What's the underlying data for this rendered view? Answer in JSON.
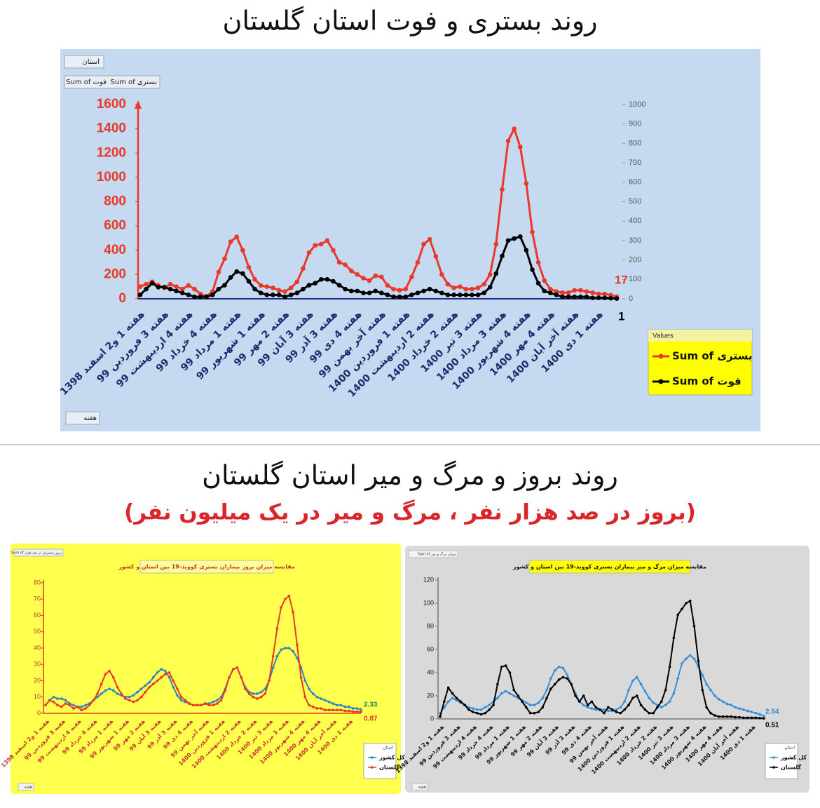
{
  "header": {
    "title1": "روند بستری و فوت استان گلستان",
    "title2": "روند بروز و مرگ و میر استان گلستان",
    "subtitle2": "(بروز در صد هزار نفر ، مرگ و میر در یک میلیون نفر)"
  },
  "chart_data": [
    {
      "type": "line",
      "filter_label": "استان",
      "axis_field_label": "هفته",
      "legend_title": "Values",
      "categories": [
        "هفته 1 و2 اسفند 1398",
        null,
        null,
        null,
        "هفته 3 فروردین 99",
        null,
        null,
        null,
        "هفته 4 اردیبهشت 99",
        null,
        null,
        null,
        "هفته 4 خرداد 99",
        null,
        null,
        null,
        "هفته 1 مرداد 99",
        null,
        null,
        null,
        "هفته 1 شهریور 99",
        null,
        null,
        null,
        "هفته 2 مهر 99",
        null,
        null,
        null,
        "هفته 3 آبان 99",
        null,
        null,
        null,
        "هفته 3 آذر 99",
        null,
        null,
        null,
        "هفته 4 دی 99",
        null,
        null,
        null,
        "هفته آخر بهمن 99",
        null,
        null,
        null,
        "هفته 1 فروردین 1400",
        null,
        null,
        null,
        "هفته 2 اردیبهشت 1400",
        null,
        null,
        null,
        "هفته 2 خرداد 1400",
        null,
        null,
        null,
        "هفته 3 تیر 1400",
        null,
        null,
        null,
        "هفته 3 مرداد 1400",
        null,
        null,
        null,
        "هفته 4 شهریور 1400",
        null,
        null,
        null,
        "هفته 4 مهر 1400",
        null,
        null,
        null,
        "هفته آخر آبان 1400",
        null,
        null,
        null,
        "هفته 1 دی 1400",
        null,
        null,
        null
      ],
      "ylim": [
        0,
        1600
      ],
      "yticks": [
        0,
        200,
        400,
        600,
        800,
        1000,
        1200,
        1400,
        1600
      ],
      "y2lim": [
        0,
        1000
      ],
      "y2ticks": [
        0,
        100,
        200,
        300,
        400,
        500,
        600,
        700,
        800,
        900,
        1000
      ],
      "series": [
        {
          "name": "Sum of بستری",
          "color": "#e8392b",
          "values": [
            100,
            120,
            140,
            110,
            90,
            120,
            100,
            80,
            110,
            80,
            40,
            20,
            60,
            220,
            330,
            470,
            510,
            400,
            260,
            160,
            110,
            100,
            90,
            70,
            60,
            90,
            140,
            250,
            380,
            440,
            450,
            480,
            400,
            300,
            280,
            230,
            200,
            170,
            150,
            190,
            180,
            110,
            80,
            70,
            80,
            180,
            300,
            450,
            490,
            350,
            200,
            120,
            90,
            100,
            80,
            80,
            90,
            120,
            200,
            450,
            900,
            1300,
            1400,
            1250,
            950,
            550,
            300,
            150,
            80,
            60,
            50,
            50,
            70,
            70,
            60,
            50,
            40,
            40,
            30,
            17
          ]
        },
        {
          "name": "Sum of فوت",
          "color": "#000000",
          "axis": "y2",
          "values": [
            20,
            50,
            80,
            60,
            60,
            50,
            40,
            30,
            20,
            10,
            10,
            10,
            20,
            50,
            70,
            110,
            140,
            130,
            90,
            50,
            30,
            20,
            20,
            20,
            10,
            20,
            30,
            50,
            70,
            80,
            100,
            100,
            90,
            70,
            50,
            40,
            40,
            30,
            30,
            40,
            30,
            20,
            10,
            10,
            10,
            20,
            30,
            40,
            50,
            40,
            30,
            20,
            20,
            20,
            20,
            20,
            20,
            30,
            60,
            130,
            220,
            300,
            310,
            320,
            250,
            150,
            80,
            40,
            30,
            20,
            10,
            10,
            10,
            10,
            10,
            5,
            5,
            5,
            3,
            1
          ]
        }
      ]
    },
    {
      "type": "line",
      "title": "مقایسه میزان بروز بیماران بستری کووید-19 بین استان و کشور",
      "value_field_label": "Sum of بروز بستریان در صد هزار",
      "filter_label": "استان",
      "axis_field_label": "هفته",
      "categories": [
        "هفته 1 و2 اسفند 1398",
        null,
        null,
        null,
        "هفته 3 فروردین 99",
        null,
        null,
        null,
        "هفته 4 اردیبهشت 99",
        null,
        null,
        null,
        "هفته 4 خرداد 99",
        null,
        null,
        null,
        "هفته 1 مرداد 99",
        null,
        null,
        null,
        "هفته 1 شهریور 99",
        null,
        null,
        null,
        "هفته 2 مهر 99",
        null,
        null,
        null,
        "هفته 3 آبان 99",
        null,
        null,
        null,
        "هفته 3 آذر 99",
        null,
        null,
        null,
        "هفته 4 دی 99",
        null,
        null,
        null,
        "هفته آخر بهمن 99",
        null,
        null,
        null,
        "هفته 1 فروردین 1400",
        null,
        null,
        null,
        "هفته 2 اردیبهشت 1400",
        null,
        null,
        null,
        "هفته 2 خرداد 1400",
        null,
        null,
        null,
        "هفته 3 تیر 1400",
        null,
        null,
        null,
        "هفته 3 مرداد 1400",
        null,
        null,
        null,
        "هفته 4 شهریور 1400",
        null,
        null,
        null,
        "هفته 4 مهر 1400",
        null,
        null,
        null,
        "هفته آخر آبان 1400",
        null,
        null,
        null,
        "هفته 1 دی 1400",
        null,
        null,
        null
      ],
      "ylim": [
        0,
        80
      ],
      "yticks": [
        0,
        10,
        20,
        30,
        40,
        50,
        60,
        70,
        80
      ],
      "series": [
        {
          "name": "کل کشور",
          "color": "#2e86c1",
          "values": [
            5,
            8,
            10,
            9,
            9,
            8,
            6,
            5,
            4,
            4,
            5,
            6,
            8,
            10,
            12,
            14,
            15,
            14,
            12,
            11,
            10,
            10,
            11,
            13,
            15,
            17,
            19,
            22,
            25,
            27,
            26,
            22,
            16,
            11,
            8,
            7,
            6,
            5,
            5,
            5,
            6,
            6,
            7,
            8,
            10,
            15,
            22,
            27,
            28,
            22,
            16,
            13,
            12,
            12,
            13,
            15,
            20,
            28,
            35,
            39,
            40,
            40,
            38,
            34,
            28,
            20,
            15,
            12,
            10,
            9,
            8,
            7,
            6,
            5,
            5,
            4,
            4,
            3,
            3,
            2.33
          ]
        },
        {
          "name": "گلستان",
          "color": "#e8392b",
          "values": [
            5,
            8,
            7,
            5,
            4,
            6,
            5,
            3,
            4,
            2,
            3,
            5,
            8,
            12,
            18,
            24,
            26,
            22,
            16,
            12,
            9,
            8,
            7,
            8,
            10,
            13,
            16,
            18,
            20,
            22,
            24,
            25,
            20,
            15,
            10,
            8,
            6,
            5,
            5,
            5,
            6,
            5,
            5,
            6,
            8,
            14,
            22,
            27,
            28,
            22,
            15,
            12,
            10,
            9,
            10,
            12,
            20,
            35,
            52,
            65,
            70,
            72,
            62,
            42,
            22,
            10,
            5,
            4,
            3,
            3,
            2,
            2,
            2,
            2,
            2,
            1.5,
            1.5,
            1,
            1,
            0.87
          ]
        }
      ]
    },
    {
      "type": "line",
      "title": "مقایسه میزان مرگ و میر بیماران بستری کووید-19 بین استان و کشور",
      "value_field_label": "Sum of میزان مرگ و میر",
      "filter_label": "استان",
      "axis_field_label": "هفته",
      "categories": [
        "هفته 1 و2 اسفند 1398",
        null,
        null,
        null,
        "هفته 3 فروردین 99",
        null,
        null,
        null,
        "هفته 4 اردیبهشت 99",
        null,
        null,
        null,
        "هفته 4 خرداد 99",
        null,
        null,
        null,
        "هفته 1 مرداد 99",
        null,
        null,
        null,
        "هفته 1 شهریور 99",
        null,
        null,
        null,
        "هفته 2 مهر 99",
        null,
        null,
        null,
        "هفته 3 آبان 99",
        null,
        null,
        null,
        "هفته 3 آذر 99",
        null,
        null,
        null,
        "هفته 4 دی 99",
        null,
        null,
        null,
        "هفته آخر بهمن 99",
        null,
        null,
        null,
        "هفته 1 فروردین 1400",
        null,
        null,
        null,
        "هفته 2 اردیبهشت 1400",
        null,
        null,
        null,
        "هفته 2 خرداد 1400",
        null,
        null,
        null,
        "هفته 3 تیر 1400",
        null,
        null,
        null,
        "هفته 3 مرداد 1400",
        null,
        null,
        null,
        "هفته 4 شهریور 1400",
        null,
        null,
        null,
        "هفته 4 مهر 1400",
        null,
        null,
        null,
        "هفته آخر آبان 1400",
        null,
        null,
        null,
        "هفته 1 دی 1400",
        null,
        null,
        null
      ],
      "ylim": [
        0,
        120
      ],
      "yticks": [
        0,
        20,
        40,
        60,
        80,
        100,
        120
      ],
      "series": [
        {
          "name": "کل کشور",
          "color": "#3a8fd9",
          "values": [
            5,
            10,
            15,
            18,
            16,
            14,
            12,
            10,
            9,
            8,
            8,
            10,
            12,
            15,
            18,
            22,
            24,
            22,
            20,
            18,
            16,
            14,
            12,
            12,
            14,
            18,
            25,
            35,
            42,
            45,
            44,
            38,
            30,
            22,
            15,
            12,
            10,
            9,
            8,
            8,
            8,
            7,
            7,
            8,
            10,
            15,
            25,
            33,
            36,
            30,
            24,
            18,
            14,
            12,
            10,
            12,
            15,
            22,
            35,
            48,
            52,
            55,
            52,
            45,
            38,
            30,
            25,
            20,
            17,
            15,
            13,
            12,
            10,
            9,
            8,
            7,
            6,
            5,
            4,
            2.54
          ]
        },
        {
          "name": "گلستان",
          "color": "#000000",
          "values": [
            2,
            15,
            27,
            22,
            18,
            15,
            12,
            8,
            6,
            5,
            4,
            5,
            8,
            12,
            30,
            45,
            46,
            40,
            25,
            20,
            15,
            10,
            5,
            5,
            6,
            10,
            18,
            26,
            30,
            34,
            36,
            35,
            30,
            20,
            15,
            20,
            12,
            15,
            10,
            8,
            5,
            10,
            8,
            6,
            5,
            8,
            12,
            18,
            20,
            12,
            8,
            5,
            5,
            10,
            15,
            25,
            45,
            70,
            90,
            95,
            100,
            102,
            80,
            50,
            25,
            10,
            5,
            3,
            2,
            2,
            2,
            2,
            1.5,
            1.5,
            1,
            1,
            1,
            1,
            0.8,
            0.51
          ]
        }
      ]
    }
  ]
}
